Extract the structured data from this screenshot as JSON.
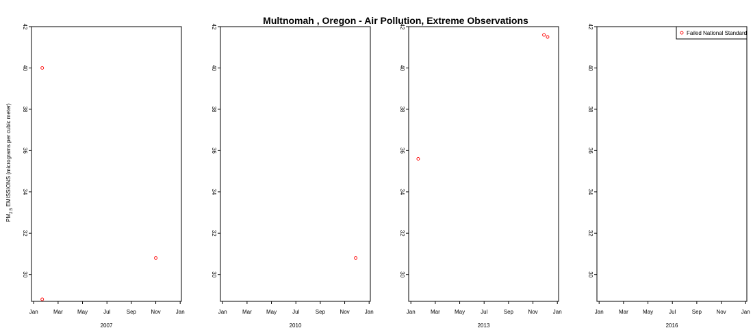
{
  "colors": {
    "point": "#ff0000",
    "axis": "#000000",
    "background": "#ffffff"
  },
  "chart_data": {
    "type": "scatter",
    "title": "Multnomah , Oregon - Air Pollution, Extreme Observations",
    "ylabel": {
      "prefix": "PM",
      "subscript": "2.5",
      "suffix": " EMISSIONS (micrograms per cubic meter)"
    },
    "ylim": [
      28.7,
      42
    ],
    "y_ticks": [
      30,
      32,
      34,
      36,
      38,
      40,
      42
    ],
    "x_ticks": [
      "Jan",
      "Mar",
      "May",
      "Jul",
      "Sep",
      "Nov",
      "Jan"
    ],
    "x_tick_months": [
      1,
      3,
      5,
      7,
      9,
      11,
      13
    ],
    "xlim_months": [
      0.82,
      13.1
    ],
    "grid": false,
    "legend": {
      "position": "top-right",
      "entries": [
        "Failed National Standard"
      ]
    },
    "panels": [
      {
        "xlabel": "2007",
        "points": [
          {
            "month": 1.7,
            "y": 40.0
          },
          {
            "month": 1.7,
            "y": 28.8
          },
          {
            "month": 11.0,
            "y": 30.8
          }
        ]
      },
      {
        "xlabel": "2010",
        "points": [
          {
            "month": 11.9,
            "y": 30.8
          }
        ]
      },
      {
        "xlabel": "2013",
        "points": [
          {
            "month": 1.6,
            "y": 35.6
          },
          {
            "month": 11.9,
            "y": 41.6
          },
          {
            "month": 12.2,
            "y": 41.5
          }
        ]
      },
      {
        "xlabel": "2016",
        "points": []
      }
    ]
  }
}
